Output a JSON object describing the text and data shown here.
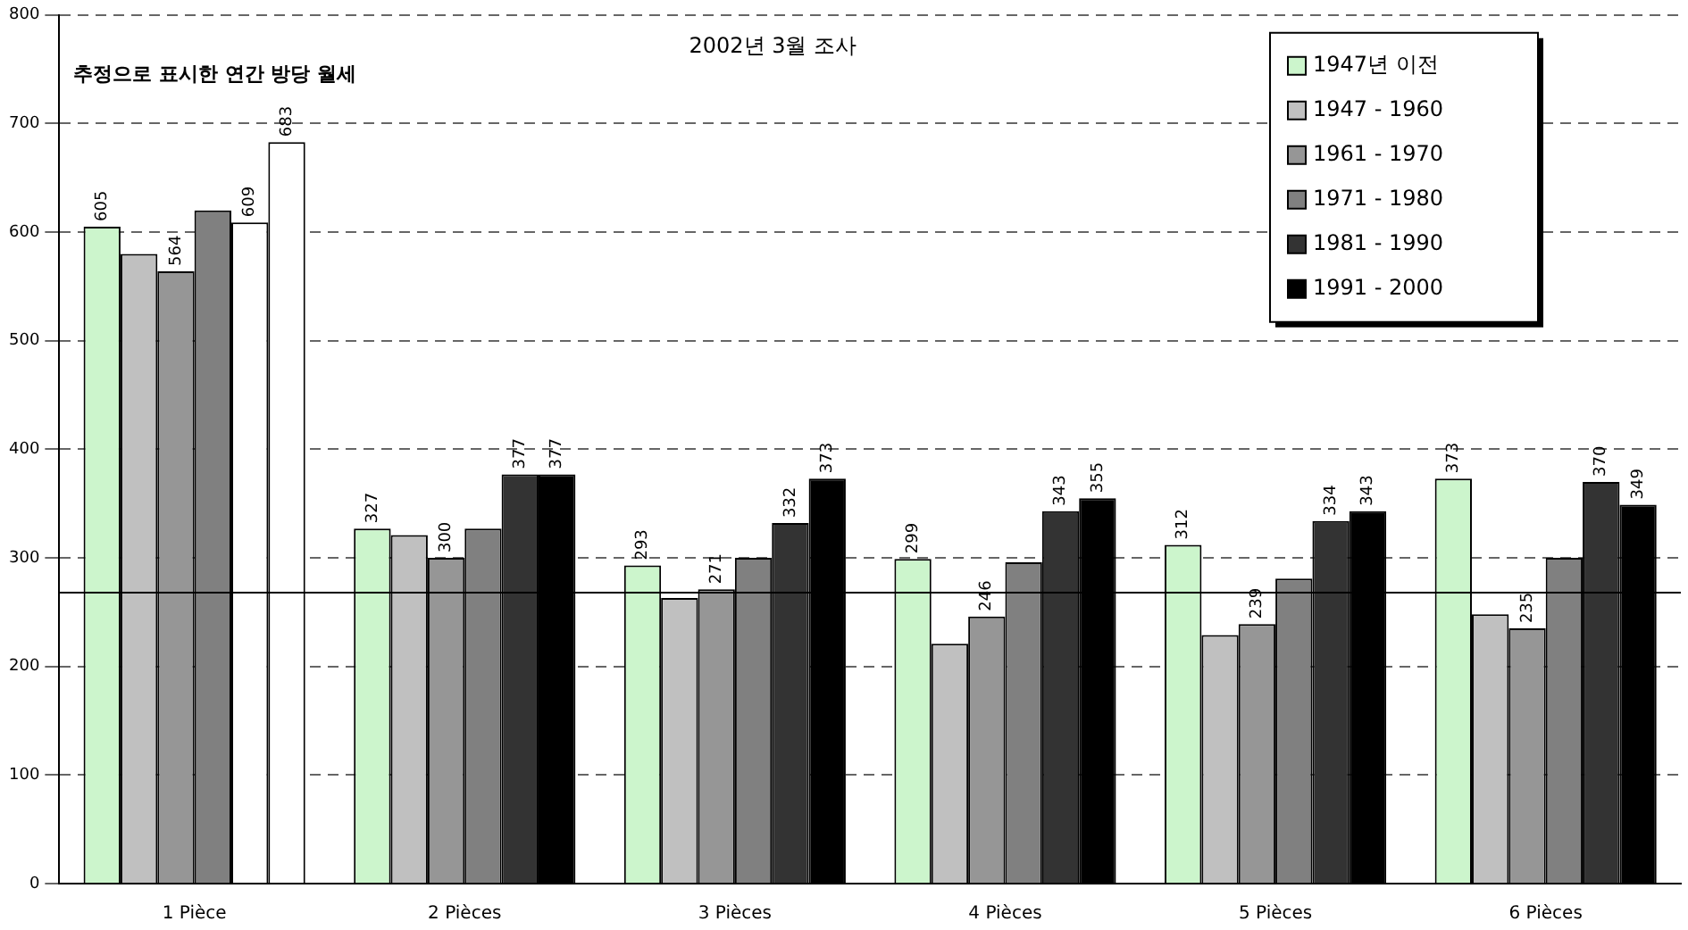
{
  "chart_data": {
    "type": "bar",
    "title": "2002년 3월 조사",
    "categories": [
      "1 Pièce",
      "2 Pièces",
      "3 Pièces",
      "4 Pièces",
      "5 Pièces",
      "6 Pièces"
    ],
    "series": [
      {
        "name": "1947년 이전",
        "color": "#ccf5cc",
        "values": [
          605,
          327,
          293,
          299,
          312,
          373
        ],
        "value_labels": [
          "605",
          "327",
          "293",
          "299",
          "312",
          "373"
        ]
      },
      {
        "name": "1947 - 1960",
        "color": "#c0c0c0",
        "values": [
          580,
          321,
          263,
          221,
          229,
          248
        ]
      },
      {
        "name": "1961 - 1970",
        "color": "#969696",
        "values": [
          564,
          300,
          271,
          246,
          239,
          235
        ],
        "value_labels": [
          "564",
          "300",
          "271",
          "246",
          "239",
          "235"
        ]
      },
      {
        "name": "1971 - 1980",
        "color": "#808080",
        "values": [
          620,
          327,
          300,
          296,
          281,
          300
        ]
      },
      {
        "name": "1981 - 1990",
        "color": "#333333",
        "colors": [
          "#ffffff",
          "#333333",
          "#333333",
          "#333333",
          "#333333",
          "#333333"
        ],
        "values": [
          609,
          377,
          332,
          343,
          334,
          370
        ],
        "value_labels": [
          "609",
          "377",
          "332",
          "343",
          "334",
          "370"
        ]
      },
      {
        "name": "1991 - 2000",
        "color": "#000000",
        "colors": [
          "#ffffff",
          "#000000",
          "#000000",
          "#000000",
          "#000000",
          "#000000"
        ],
        "values": [
          683,
          377,
          373,
          355,
          343,
          349
        ],
        "value_labels": [
          "683",
          "377",
          "373",
          "355",
          "343",
          "349"
        ]
      }
    ],
    "ylim": [
      0,
      800
    ],
    "yticks": [
      0,
      100,
      200,
      300,
      400,
      500,
      600,
      700,
      800
    ],
    "grid": "y",
    "legend": "top right",
    "ref_lines": [
      {
        "axis": "y",
        "value": 268,
        "color": "#000000",
        "line_style": "solid"
      }
    ],
    "annotations": [
      "추정으로 표시한 연간 방당 월세"
    ]
  }
}
